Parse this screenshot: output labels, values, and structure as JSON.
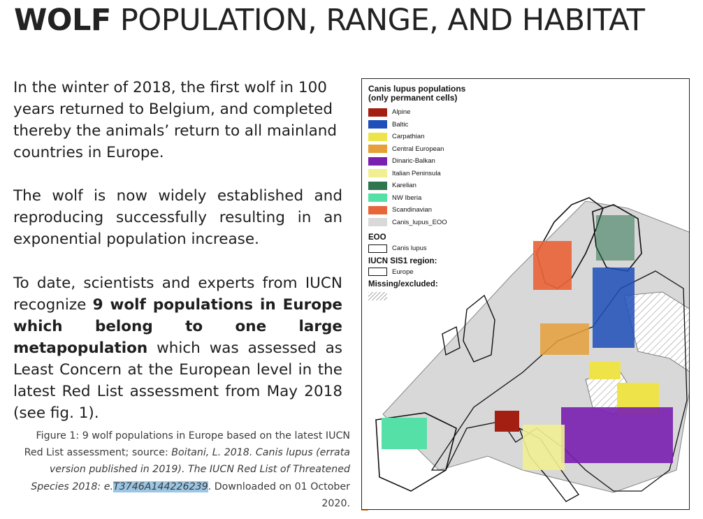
{
  "title": {
    "bold": "WOLF",
    "light": " POPULATION, RANGE, AND HABITAT"
  },
  "paragraphs": {
    "p1": "In the winter of 2018, the first wolf in 100 years returned to Belgium, and completed thereby the animals’ return to all mainland countries in Europe.",
    "p2": "The wolf is now widely established and reproducing successfully resulting in an exponential population increase.",
    "p3_pre": "To date, scientists and experts from IUCN recognize ",
    "p3_bold": "9 wolf populations in Europe which belong to one large metapopulation",
    "p3_post": " which was assessed as Least Concern at the European level in the latest Red List assessment from May 2018 (see fig. 1)."
  },
  "caption": {
    "pre": "Figure 1: 9 wolf populations in Europe based on the latest IUCN Red List assessment; source: ",
    "italic": "Boitani, L. 2018. Canis lupus (errata version published in 2019). The IUCN Red List of Threatened Species 2018: e.",
    "highlight": "T3746A144226239",
    "post": ". Downloaded on 01 October 2020."
  },
  "map": {
    "legend": {
      "title": "Canis lupus populations (only permanent cells)",
      "populations": [
        {
          "label": "Alpine",
          "color": "#a31f12"
        },
        {
          "label": "Baltic",
          "color": "#1f4fb8"
        },
        {
          "label": "Carpathian",
          "color": "#eee44a"
        },
        {
          "label": "Central European",
          "color": "#e5a03a"
        },
        {
          "label": "Dinaric-Balkan",
          "color": "#7a1fb0"
        },
        {
          "label": "Italian Peninsula",
          "color": "#f1ef92"
        },
        {
          "label": "Karelian",
          "color": "#2e7550"
        },
        {
          "label": "NW Iberia",
          "color": "#55e0a8"
        },
        {
          "label": "Scandinavian",
          "color": "#e8653a"
        },
        {
          "label": "Canis_lupus_EOO",
          "color": "#d9d9d9"
        }
      ],
      "eoo_heading": "EOO",
      "eoo_item": "Canis lupus",
      "region_heading": "IUCN SIS1 region:",
      "region_item": "Europe",
      "missing_heading": "Missing/excluded:"
    }
  }
}
